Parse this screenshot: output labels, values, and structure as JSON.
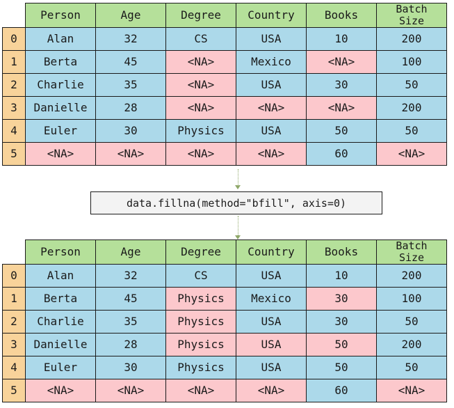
{
  "columns": [
    "Person",
    "Age",
    "Degree",
    "Country",
    "Books",
    "Batch\nSize"
  ],
  "index": [
    "0",
    "1",
    "2",
    "3",
    "4",
    "5"
  ],
  "before": [
    [
      "Alan",
      "32",
      "CS",
      "USA",
      "10",
      "200"
    ],
    [
      "Berta",
      "45",
      "<NA>",
      "Mexico",
      "<NA>",
      "100"
    ],
    [
      "Charlie",
      "35",
      "<NA>",
      "USA",
      "30",
      "50"
    ],
    [
      "Danielle",
      "28",
      "<NA>",
      "<NA>",
      "<NA>",
      "200"
    ],
    [
      "Euler",
      "30",
      "Physics",
      "USA",
      "50",
      "50"
    ],
    [
      "<NA>",
      "<NA>",
      "<NA>",
      "<NA>",
      "60",
      "<NA>"
    ]
  ],
  "before_highlight": [
    [
      0,
      0,
      0,
      0,
      0,
      0
    ],
    [
      0,
      0,
      1,
      0,
      1,
      0
    ],
    [
      0,
      0,
      1,
      0,
      0,
      0
    ],
    [
      0,
      0,
      1,
      1,
      1,
      0
    ],
    [
      0,
      0,
      0,
      0,
      0,
      0
    ],
    [
      1,
      1,
      1,
      1,
      0,
      1
    ]
  ],
  "code": "data.fillna(method=\"bfill\", axis=0)",
  "after": [
    [
      "Alan",
      "32",
      "CS",
      "USA",
      "10",
      "200"
    ],
    [
      "Berta",
      "45",
      "Physics",
      "Mexico",
      "30",
      "100"
    ],
    [
      "Charlie",
      "35",
      "Physics",
      "USA",
      "30",
      "50"
    ],
    [
      "Danielle",
      "28",
      "Physics",
      "USA",
      "50",
      "200"
    ],
    [
      "Euler",
      "30",
      "Physics",
      "USA",
      "50",
      "50"
    ],
    [
      "<NA>",
      "<NA>",
      "<NA>",
      "<NA>",
      "60",
      "<NA>"
    ]
  ],
  "after_highlight": [
    [
      0,
      0,
      0,
      0,
      0,
      0
    ],
    [
      0,
      0,
      1,
      0,
      1,
      0
    ],
    [
      0,
      0,
      1,
      0,
      0,
      0
    ],
    [
      0,
      0,
      1,
      1,
      1,
      0
    ],
    [
      0,
      0,
      0,
      0,
      0,
      0
    ],
    [
      1,
      1,
      1,
      1,
      0,
      1
    ]
  ],
  "colors": {
    "header": "#b5e09a",
    "index": "#f8d39a",
    "value": "#acd9ea",
    "highlight": "#fcc8cc",
    "connector": "#8fa86a"
  }
}
